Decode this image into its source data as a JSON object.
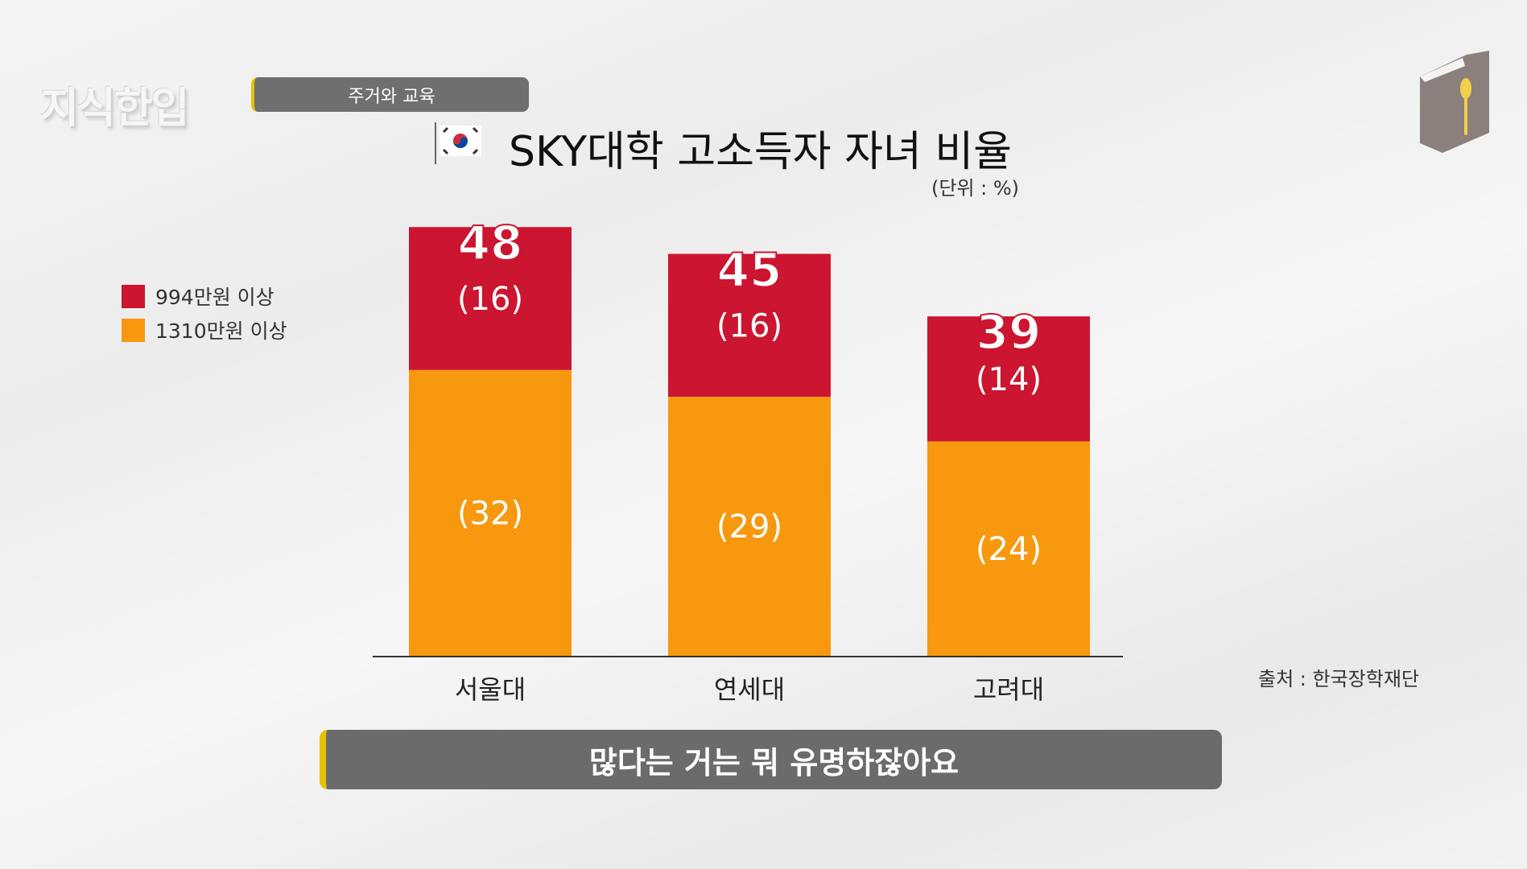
{
  "logo": "지식한입",
  "topic": "주거와 교육",
  "subtitle": "많다는 거는 뭐 유명하잖아요",
  "source": "출처 : 한국장학재단",
  "colors": {
    "high": "#cc1530",
    "mid": "#f7980f"
  },
  "chart_data": {
    "type": "bar",
    "stacked": true,
    "title": "SKY대학 고소득자 자녀 비율",
    "unit": "(단위 : %)",
    "categories": [
      "서울대",
      "연세대",
      "고려대"
    ],
    "totals": [
      48,
      45,
      39
    ],
    "series": [
      {
        "name": "1310만원 이상",
        "values": [
          32,
          29,
          24
        ],
        "labels": [
          "(32)",
          "(29)",
          "(24)"
        ]
      },
      {
        "name": "994만원 이상",
        "values": [
          16,
          16,
          14
        ],
        "labels": [
          "(16)",
          "(16)",
          "(14)"
        ]
      }
    ],
    "legend": [
      "994만원 이상",
      "1310만원 이상"
    ],
    "legend_position": "left",
    "ylim": [
      0,
      48
    ]
  }
}
